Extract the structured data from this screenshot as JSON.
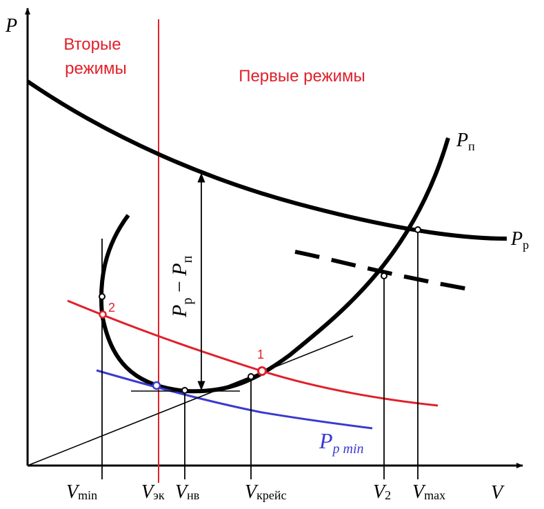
{
  "axes": {
    "y_label": "P",
    "x_label": "V"
  },
  "regions": {
    "second": [
      "Вторые",
      "режимы"
    ],
    "first": "Первые режимы"
  },
  "curves": {
    "available": {
      "main": "P",
      "sub": "р"
    },
    "required": {
      "main": "P",
      "sub": "п"
    },
    "min_required": {
      "main": "P",
      "sub": "р min"
    }
  },
  "difference_label": {
    "a": "P",
    "a_sub": "р",
    "minus": " − ",
    "b": "P",
    "b_sub": "п"
  },
  "points": {
    "p1": "1",
    "p2": "2"
  },
  "ticks": [
    {
      "main": "V",
      "sub": "min"
    },
    {
      "main": "V",
      "sub": "эк"
    },
    {
      "main": "V",
      "sub": "нв"
    },
    {
      "main": "V",
      "sub": "крейс"
    },
    {
      "main": "V",
      "sub": "2"
    },
    {
      "main": "V",
      "sub": "max"
    }
  ],
  "colors": {
    "ink": "#000000",
    "red": "#e0202a",
    "blue": "#3a3ad0",
    "regionText": "#e0202a"
  }
}
